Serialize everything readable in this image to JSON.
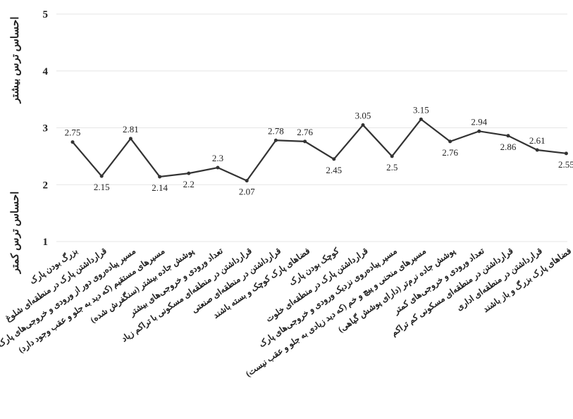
{
  "chart_data": {
    "type": "line",
    "annotations": [
      "احساس ترس بیشتر",
      "احساس ترس کمتر"
    ],
    "categories": [
      "بزرگ بودن پارک",
      "قرارداشتن پارک در منطقه‌ای شلوغ",
      "مسیر پیاده‌روی دور از ورودی و خروجی‌های پارک",
      "مسیرهای مستقیم (که دید به جلو و عقب وجود دارد)",
      "پوشش جاده بیشتر (سنگفرش شده)",
      "تعداد ورودی و خروجی‌های بیشتر",
      "قرارداشتن در منطقه‌ای مسکونی با تراکم زیاد",
      "قرارداشتن در منطقه‌ای صنعتی",
      "فضاهای پارک کوچک و بسته باشند",
      "کوچک بودن پارک",
      "قرارداشتن پارک در منطقه‌ای خلوت",
      "مسیر پیاده‌روی نزدیک ورودی و خروجی‌های پارک",
      "مسیرهای منحنی و پیچ و خم (که دید زیادی به جلو و عقب نیست)",
      "پوشش جاده نرم‌تر (دارای پوشش گیاهی)",
      "تعداد ورودی و خروجی‌های کمتر",
      "قرارداشتن در منطقه‌ای مسکونی کم تراکم",
      "قرارداشتن در منطقه‌ای اداری",
      "فضاهای پارک بزرگ و باز باشند"
    ],
    "values": [
      2.75,
      2.15,
      2.81,
      2.14,
      2.2,
      2.3,
      2.07,
      2.78,
      2.76,
      2.45,
      3.05,
      2.5,
      3.15,
      2.76,
      2.94,
      2.86,
      2.61,
      2.55
    ],
    "color": "#333333",
    "ylim": [
      1,
      5
    ],
    "yticks": [
      1,
      2,
      3,
      4,
      5
    ],
    "grid": true
  }
}
